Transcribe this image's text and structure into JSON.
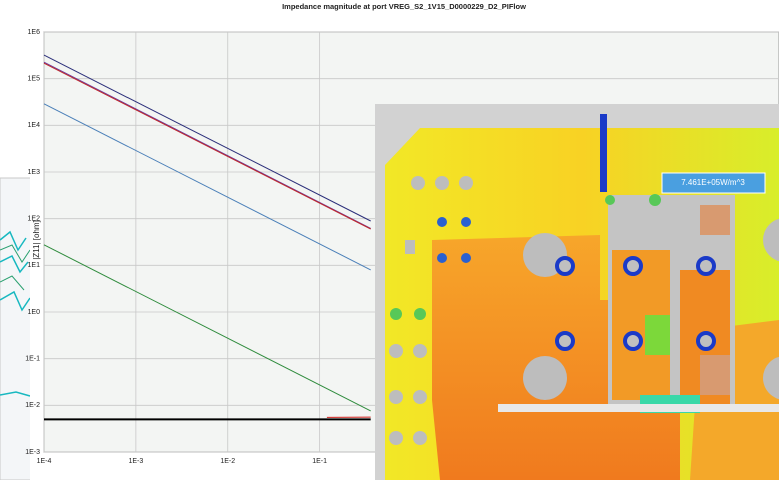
{
  "chart_data": {
    "type": "line",
    "title": "Impedance magnitude at port VREG_S2_1V15_D0000229_D2_PIFlow",
    "ylabel": "|Z11| [ohm]",
    "xlog": true,
    "ylog": true,
    "grid": true,
    "xlim": [
      0.0001,
      10000
    ],
    "ylim": [
      0.001,
      1000000
    ],
    "xticks": [
      {
        "value": 0.0001,
        "label": "1E-4"
      },
      {
        "value": 0.001,
        "label": "1E-3"
      },
      {
        "value": 0.01,
        "label": "1E-2"
      },
      {
        "value": 0.1,
        "label": "1E-1"
      }
    ],
    "yticks": [
      {
        "value": 0.001,
        "label": "1E-3"
      },
      {
        "value": 0.01,
        "label": "1E-2"
      },
      {
        "value": 0.1,
        "label": "1E-1"
      },
      {
        "value": 1,
        "label": "1E0"
      },
      {
        "value": 10,
        "label": "1E1"
      },
      {
        "value": 100,
        "label": "1E2"
      },
      {
        "value": 1000,
        "label": "1E3"
      },
      {
        "value": 10000,
        "label": "1E4"
      },
      {
        "value": 100000,
        "label": "1E5"
      },
      {
        "value": 1000000,
        "label": "1E6"
      }
    ],
    "series": [
      {
        "color": "#2b2f7a",
        "x": [
          0.0001,
          0.36
        ],
        "values": [
          320000,
          89
        ]
      },
      {
        "color": "#6a3a9c",
        "x": [
          0.0001,
          0.36
        ],
        "values": [
          225000,
          62
        ]
      },
      {
        "color": "#c0282a",
        "x": [
          0.0001,
          0.36
        ],
        "values": [
          215000,
          60
        ]
      },
      {
        "color": "#4a7fb8",
        "x": [
          0.0001,
          0.36
        ],
        "values": [
          29000,
          8
        ]
      },
      {
        "color": "#2e8b3c",
        "x": [
          0.0001,
          0.36
        ],
        "values": [
          27.5,
          0.0076
        ]
      },
      {
        "color": "#000000",
        "x": [
          0.0001,
          0.36
        ],
        "values": [
          0.005,
          0.005
        ]
      },
      {
        "color": "#d0201c",
        "x": [
          0.12,
          0.36
        ],
        "values": [
          0.0055,
          0.0056
        ]
      }
    ]
  },
  "overlay": {
    "label": "7.461E+05W/m^3"
  }
}
